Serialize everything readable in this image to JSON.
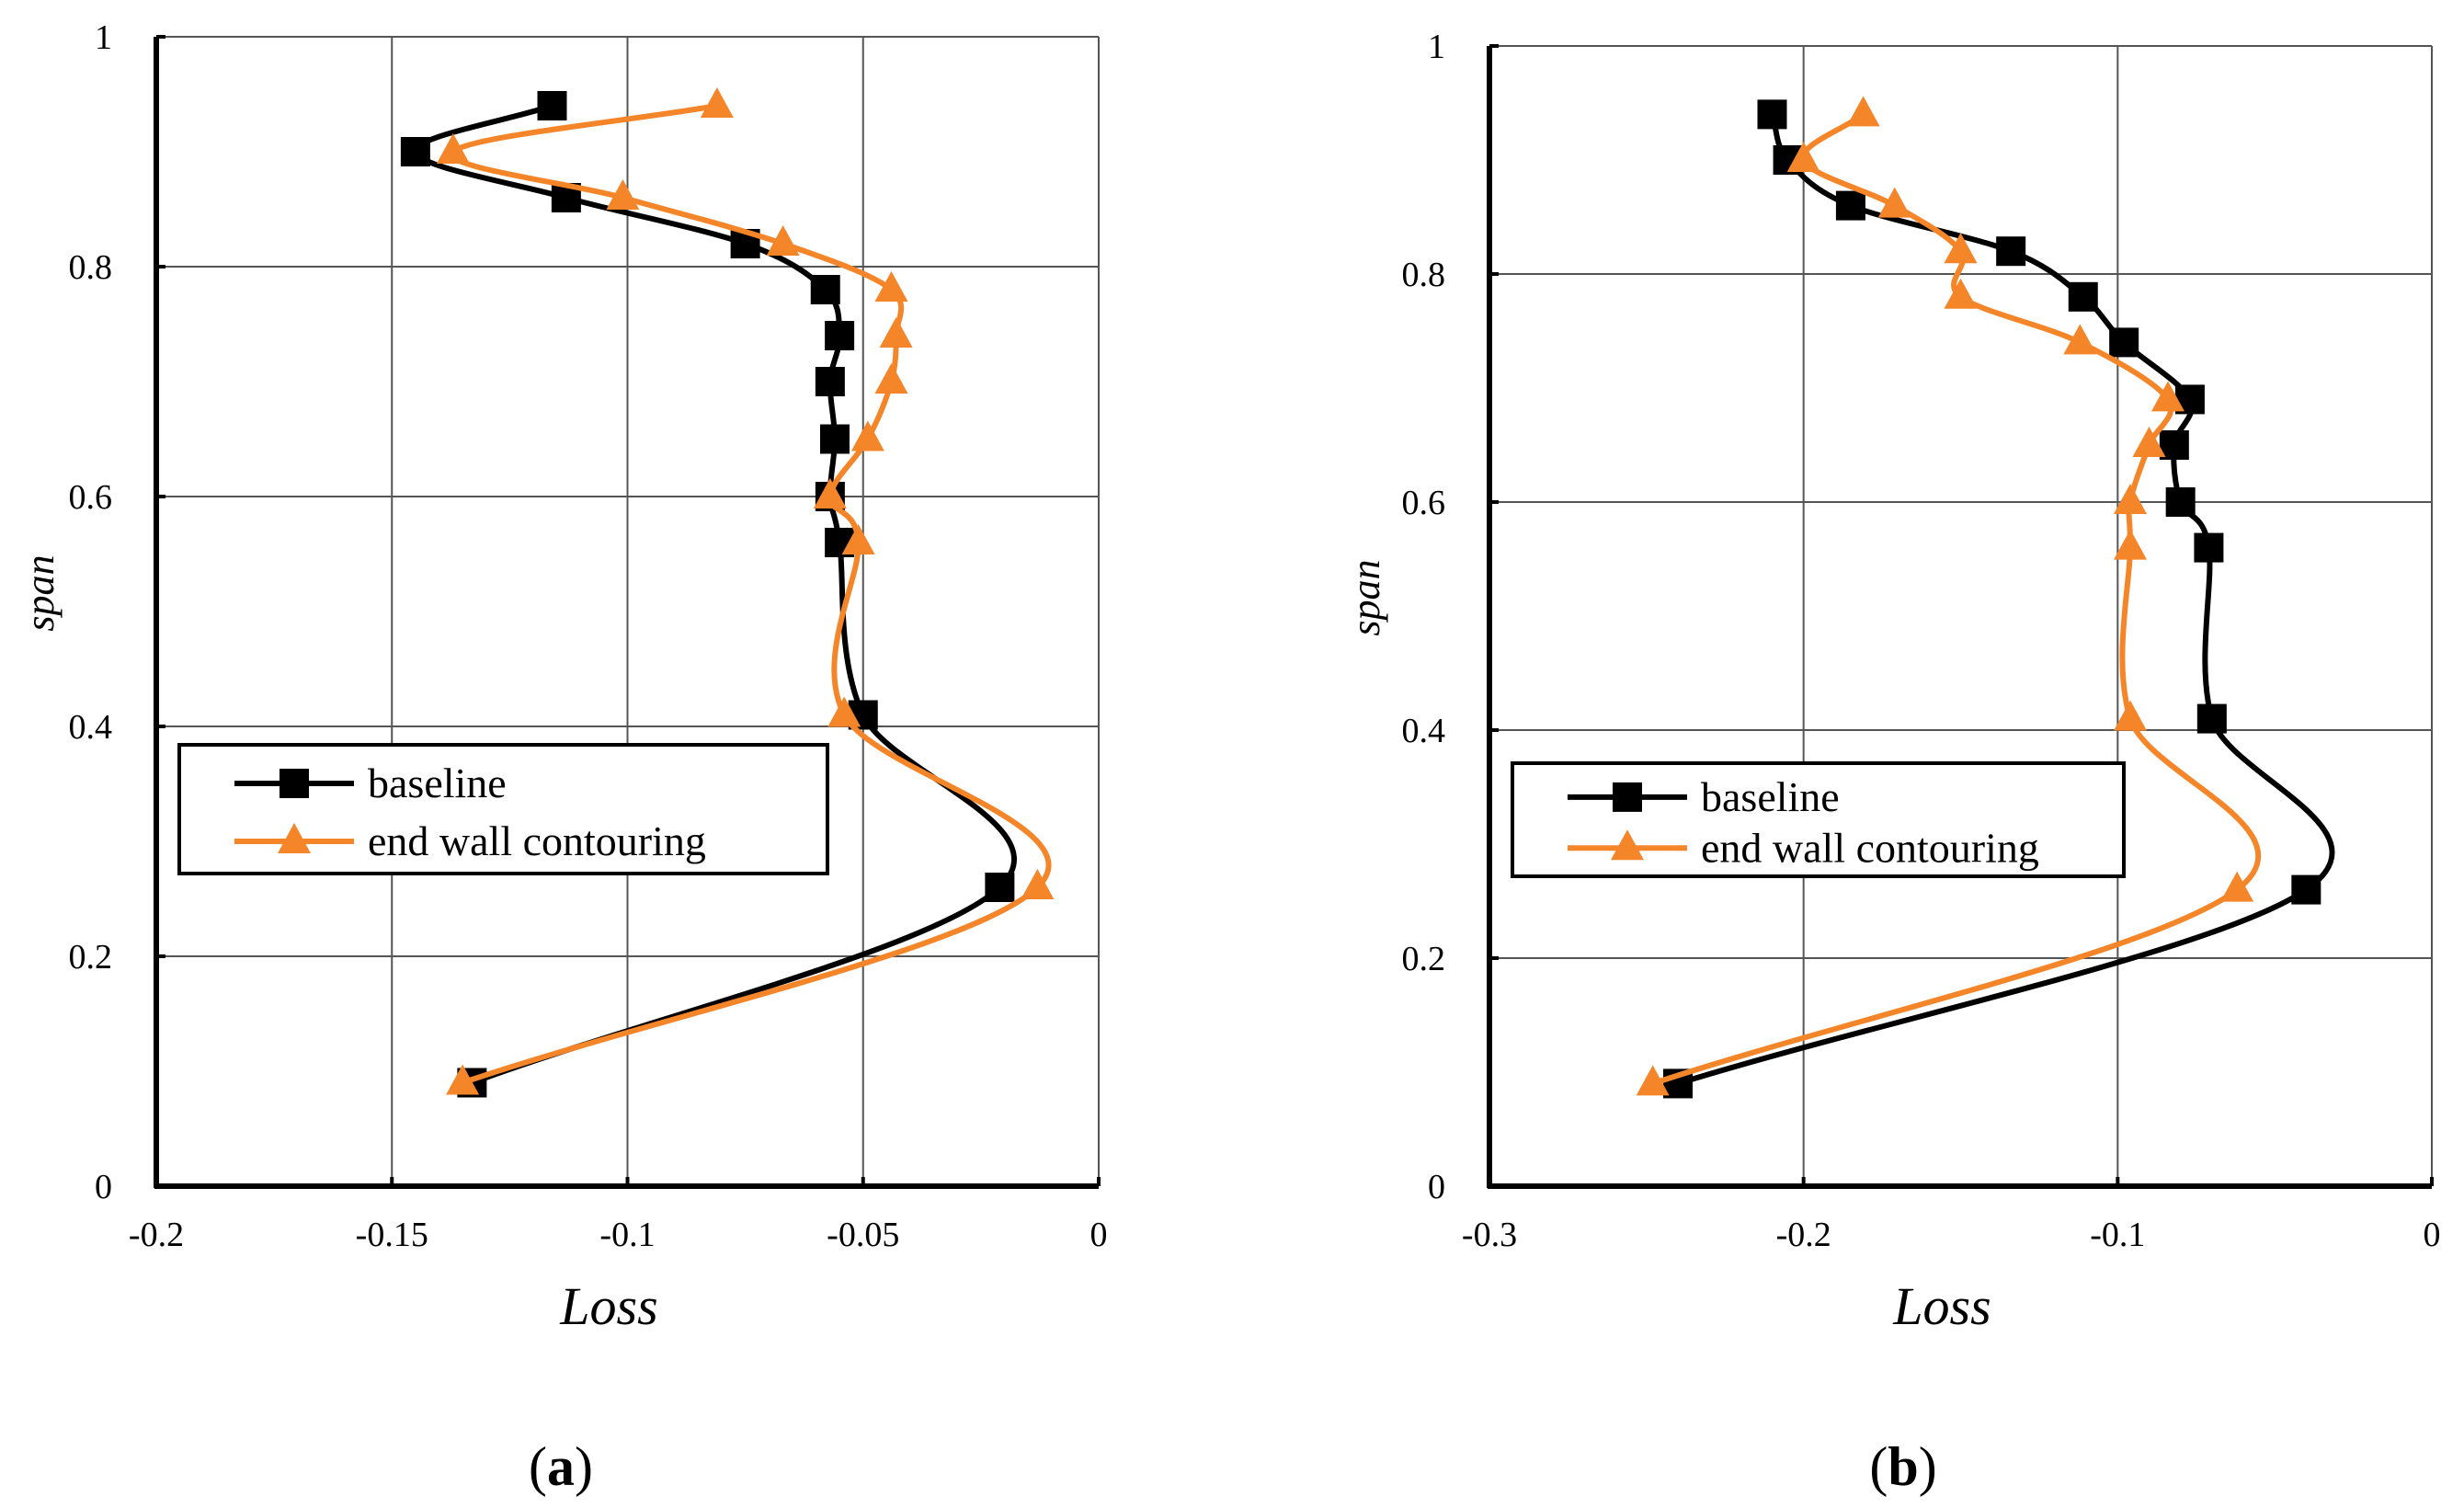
{
  "colors": {
    "baseline": "#000000",
    "contour": "#F58529",
    "grid": "#555555",
    "axis": "#000000"
  },
  "chart_data": [
    {
      "type": "line",
      "panel": "a",
      "panel_prefix": "(",
      "panel_suffix": ")",
      "xlabel": "Loss",
      "ylabel": "span",
      "xlim": [
        -0.2,
        0
      ],
      "ylim": [
        0,
        1
      ],
      "xticks": [
        -0.2,
        -0.15,
        -0.1,
        -0.05,
        0
      ],
      "xtick_labels": [
        "-0.2",
        "-0.15",
        "-0.1",
        "-0.05",
        "0"
      ],
      "yticks": [
        0,
        0.2,
        0.4,
        0.6,
        0.8,
        1
      ],
      "ytick_labels": [
        "0",
        "0.2",
        "0.4",
        "0.6",
        "0.8",
        "1"
      ],
      "grid": true,
      "legend_position": "middle-left",
      "series": [
        {
          "name": "baseline",
          "marker": "square",
          "color": "#000000",
          "points": [
            [
              -0.116,
              0.94
            ],
            [
              -0.145,
              0.9
            ],
            [
              -0.113,
              0.86
            ],
            [
              -0.075,
              0.82
            ],
            [
              -0.058,
              0.78
            ],
            [
              -0.055,
              0.74
            ],
            [
              -0.057,
              0.7
            ],
            [
              -0.056,
              0.65
            ],
            [
              -0.057,
              0.6
            ],
            [
              -0.055,
              0.56
            ],
            [
              -0.05,
              0.41
            ],
            [
              -0.021,
              0.26
            ],
            [
              -0.133,
              0.09
            ]
          ]
        },
        {
          "name": "end wall contouring",
          "marker": "triangle",
          "color": "#F58529",
          "points": [
            [
              -0.081,
              0.94
            ],
            [
              -0.137,
              0.9
            ],
            [
              -0.101,
              0.86
            ],
            [
              -0.067,
              0.82
            ],
            [
              -0.044,
              0.78
            ],
            [
              -0.043,
              0.74
            ],
            [
              -0.044,
              0.7
            ],
            [
              -0.049,
              0.65
            ],
            [
              -0.057,
              0.6
            ],
            [
              -0.051,
              0.56
            ],
            [
              -0.054,
              0.41
            ],
            [
              -0.013,
              0.26
            ],
            [
              -0.135,
              0.09
            ]
          ]
        }
      ]
    },
    {
      "type": "line",
      "panel": "b",
      "panel_prefix": "(",
      "panel_suffix": ")",
      "xlabel": "Loss",
      "ylabel": "span",
      "xlim": [
        -0.3,
        0
      ],
      "ylim": [
        0,
        1
      ],
      "xticks": [
        -0.3,
        -0.2,
        -0.1,
        0
      ],
      "xtick_labels": [
        "-0.3",
        "-0.2",
        "-0.1",
        "0"
      ],
      "yticks": [
        0,
        0.2,
        0.4,
        0.6,
        0.8,
        1
      ],
      "ytick_labels": [
        "0",
        "0.2",
        "0.4",
        "0.6",
        "0.8",
        "1"
      ],
      "grid": true,
      "legend_position": "middle-left",
      "series": [
        {
          "name": "baseline",
          "marker": "square",
          "color": "#000000",
          "points": [
            [
              -0.21,
              0.94
            ],
            [
              -0.205,
              0.9
            ],
            [
              -0.185,
              0.86
            ],
            [
              -0.134,
              0.82
            ],
            [
              -0.111,
              0.78
            ],
            [
              -0.098,
              0.74
            ],
            [
              -0.077,
              0.69
            ],
            [
              -0.082,
              0.65
            ],
            [
              -0.08,
              0.6
            ],
            [
              -0.071,
              0.56
            ],
            [
              -0.07,
              0.41
            ],
            [
              -0.04,
              0.26
            ],
            [
              -0.24,
              0.09
            ]
          ]
        },
        {
          "name": "end wall contouring",
          "marker": "triangle",
          "color": "#F58529",
          "points": [
            [
              -0.181,
              0.94
            ],
            [
              -0.2,
              0.9
            ],
            [
              -0.171,
              0.86
            ],
            [
              -0.15,
              0.82
            ],
            [
              -0.15,
              0.78
            ],
            [
              -0.112,
              0.74
            ],
            [
              -0.084,
              0.69
            ],
            [
              -0.09,
              0.65
            ],
            [
              -0.096,
              0.6
            ],
            [
              -0.096,
              0.56
            ],
            [
              -0.096,
              0.41
            ],
            [
              -0.062,
              0.26
            ],
            [
              -0.248,
              0.09
            ]
          ]
        }
      ]
    }
  ]
}
